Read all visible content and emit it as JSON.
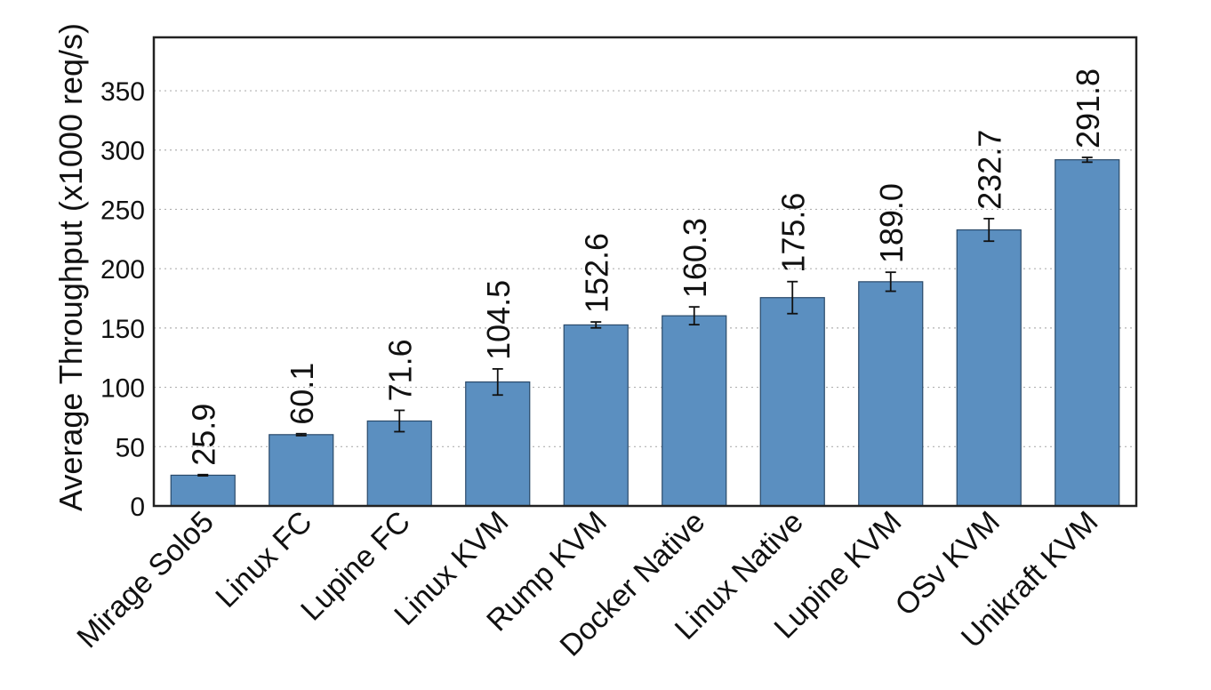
{
  "chart_data": {
    "type": "bar",
    "title": "",
    "xlabel": "",
    "ylabel": "Average Throughput (x1000 req/s)",
    "ylim": [
      0,
      395
    ],
    "yticks": [
      0,
      50,
      100,
      150,
      200,
      250,
      300,
      350
    ],
    "grid": "horizontal-dotted",
    "bar_color": "#5b8fc0",
    "categories": [
      "Mirage Solo5",
      "Linux FC",
      "Lupine FC",
      "Linux KVM",
      "Rump KVM",
      "Docker Native",
      "Linux Native",
      "Lupine KVM",
      "OSv KVM",
      "Unikraft KVM"
    ],
    "values": [
      25.9,
      60.1,
      71.6,
      104.5,
      152.6,
      160.3,
      175.6,
      189.0,
      232.7,
      291.8
    ],
    "value_labels": [
      "25.9",
      "60.1",
      "71.6",
      "104.5",
      "152.6",
      "160.3",
      "175.6",
      "189.0",
      "232.7",
      "291.8"
    ],
    "errors": [
      0.5,
      0.8,
      9.0,
      11.0,
      2.5,
      7.5,
      13.5,
      8.0,
      9.5,
      2.0
    ]
  }
}
